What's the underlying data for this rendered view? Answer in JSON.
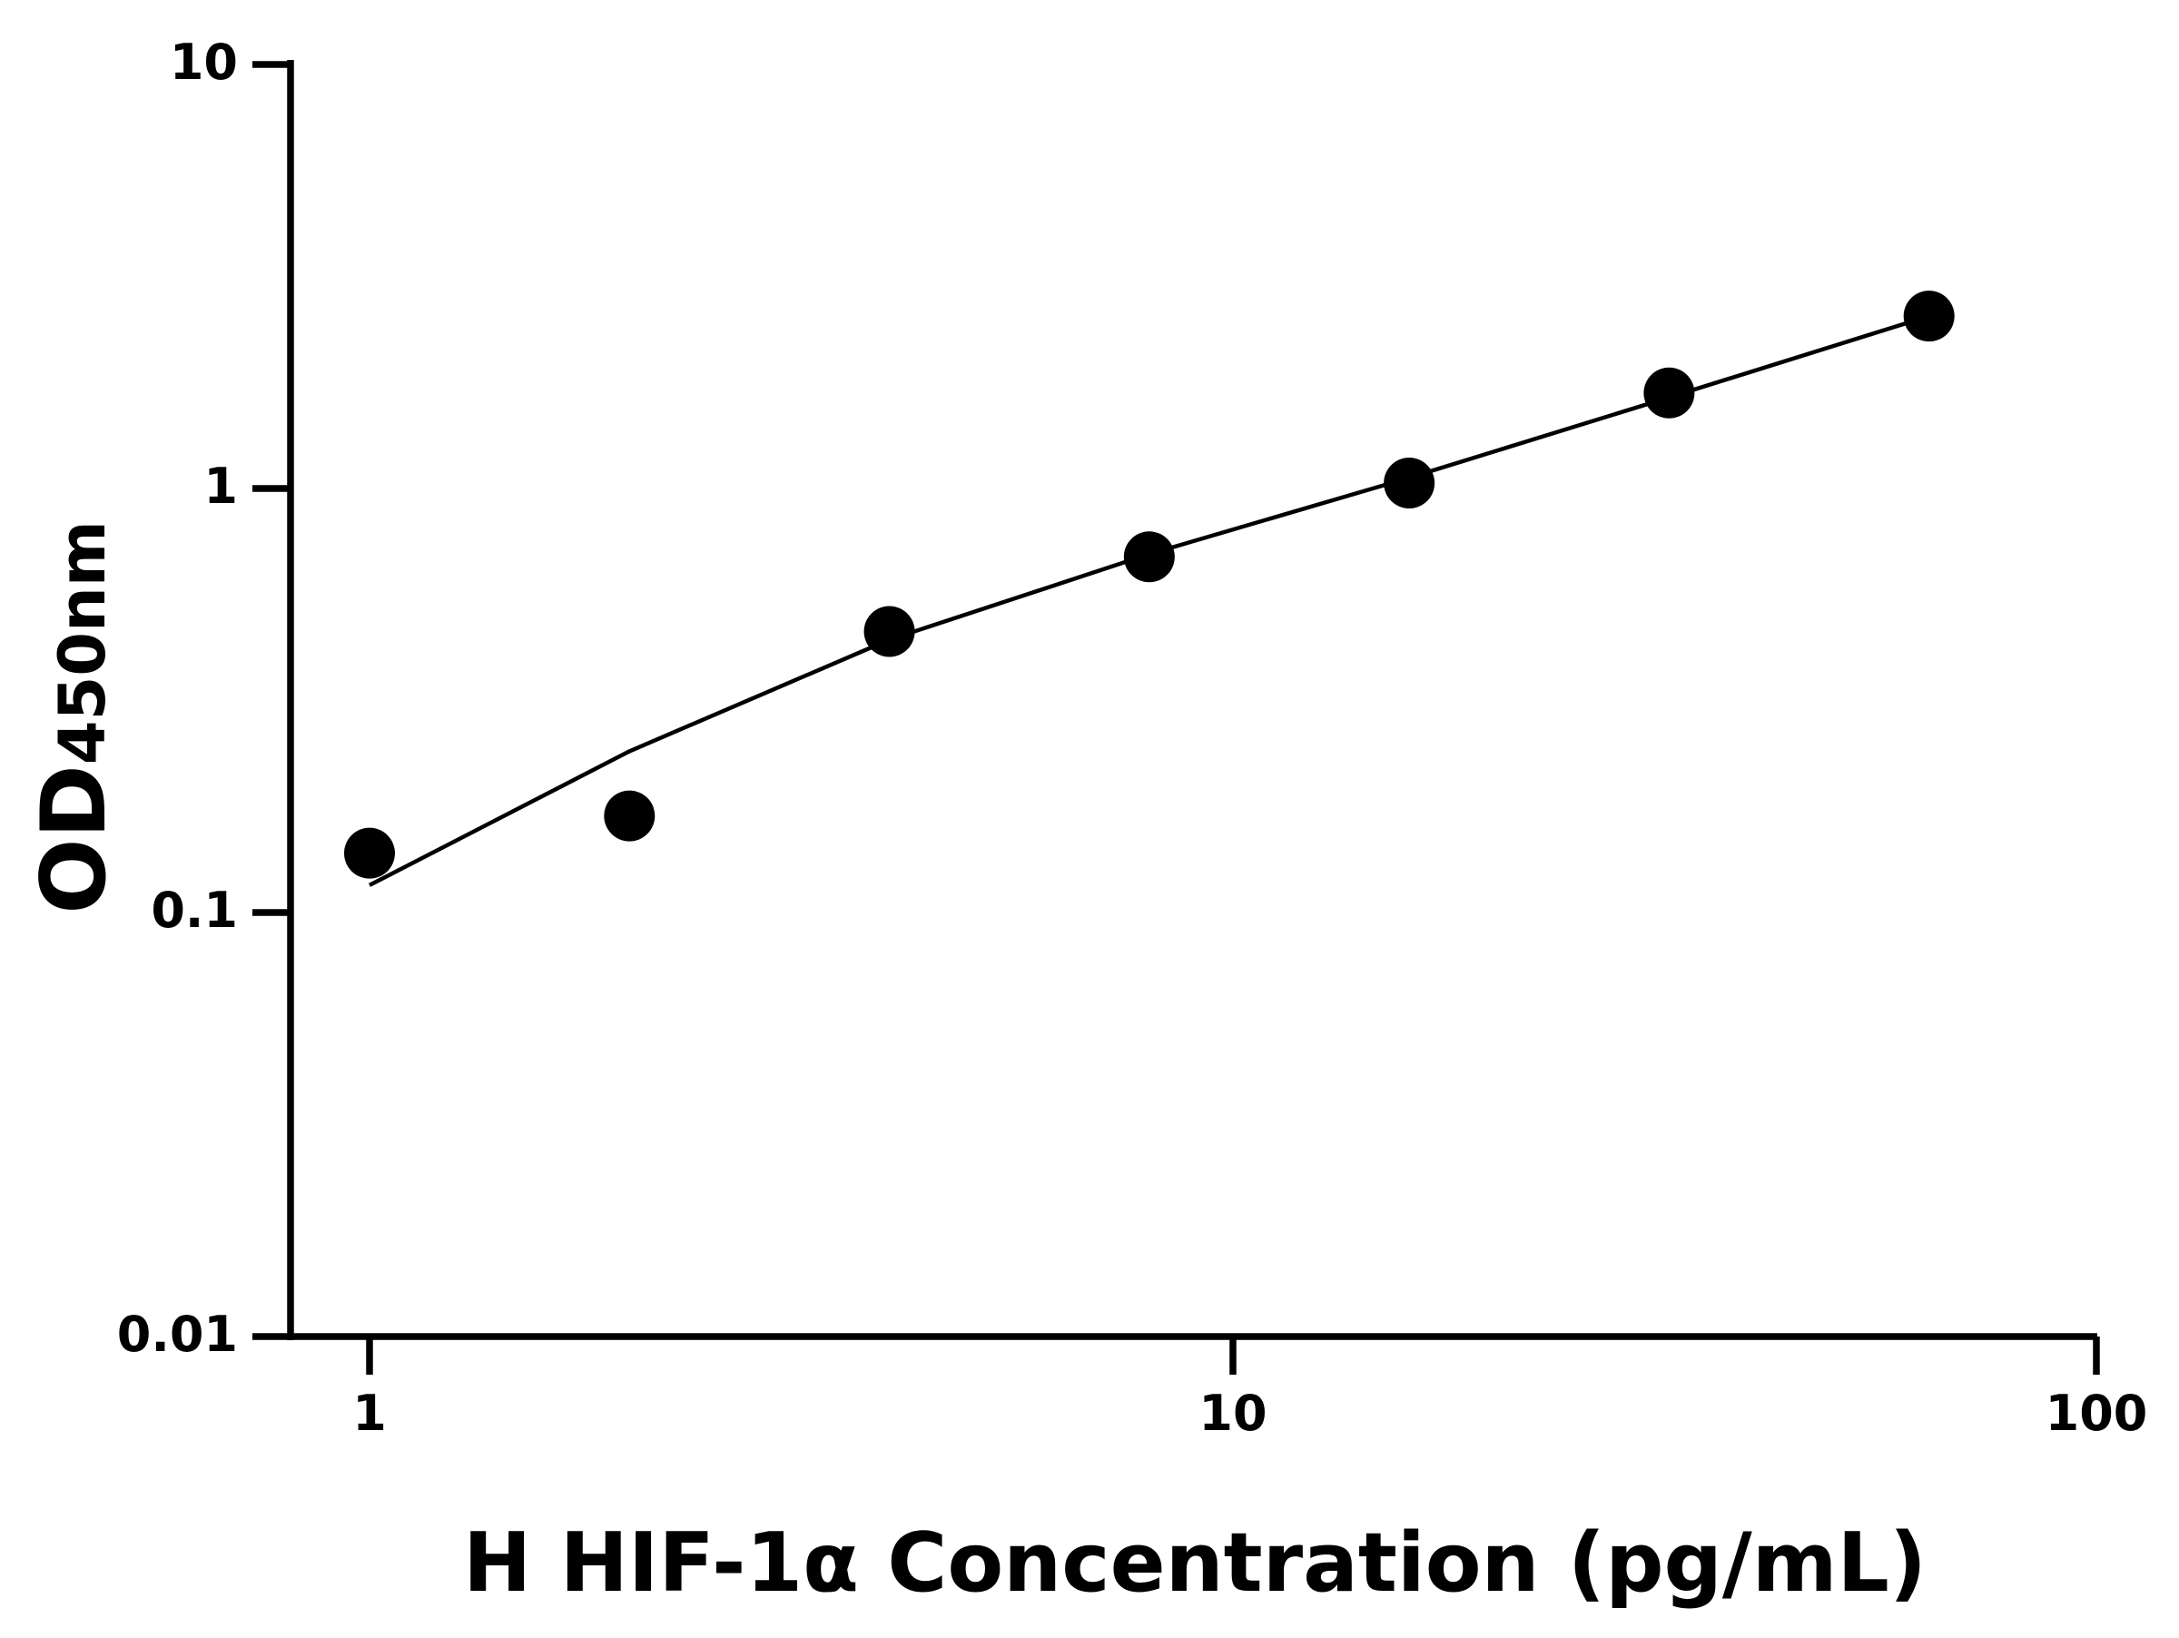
{
  "chart_data": {
    "type": "scatter",
    "title": "",
    "xlabel": "H HIF-1α Concentration (pg/mL)",
    "ylabel": {
      "main": "OD",
      "subscript": "450nm"
    },
    "xscale": "log",
    "yscale": "log",
    "xlim": [
      0.8,
      100
    ],
    "ylim": [
      0.01,
      10
    ],
    "xticks": [
      {
        "value": 1,
        "label": "1"
      },
      {
        "value": 10,
        "label": "10"
      },
      {
        "value": 100,
        "label": "100"
      }
    ],
    "yticks": [
      {
        "value": 0.01,
        "label": "0.01"
      },
      {
        "value": 0.1,
        "label": "0.1"
      },
      {
        "value": 1,
        "label": "1"
      },
      {
        "value": 10,
        "label": "10"
      }
    ],
    "grid": false,
    "legend": "none",
    "series": [
      {
        "kind": "points",
        "color": "#000000",
        "x": [
          1,
          2,
          4,
          8,
          16,
          32,
          64
        ],
        "y": [
          0.138,
          0.169,
          0.46,
          0.69,
          1.03,
          1.68,
          2.55
        ]
      },
      {
        "kind": "fit-curve",
        "color": "#000000",
        "x": [
          1,
          2,
          4,
          8,
          16,
          32,
          64
        ],
        "y": [
          0.116,
          0.24,
          0.44,
          0.7,
          1.06,
          1.64,
          2.55
        ]
      }
    ]
  }
}
